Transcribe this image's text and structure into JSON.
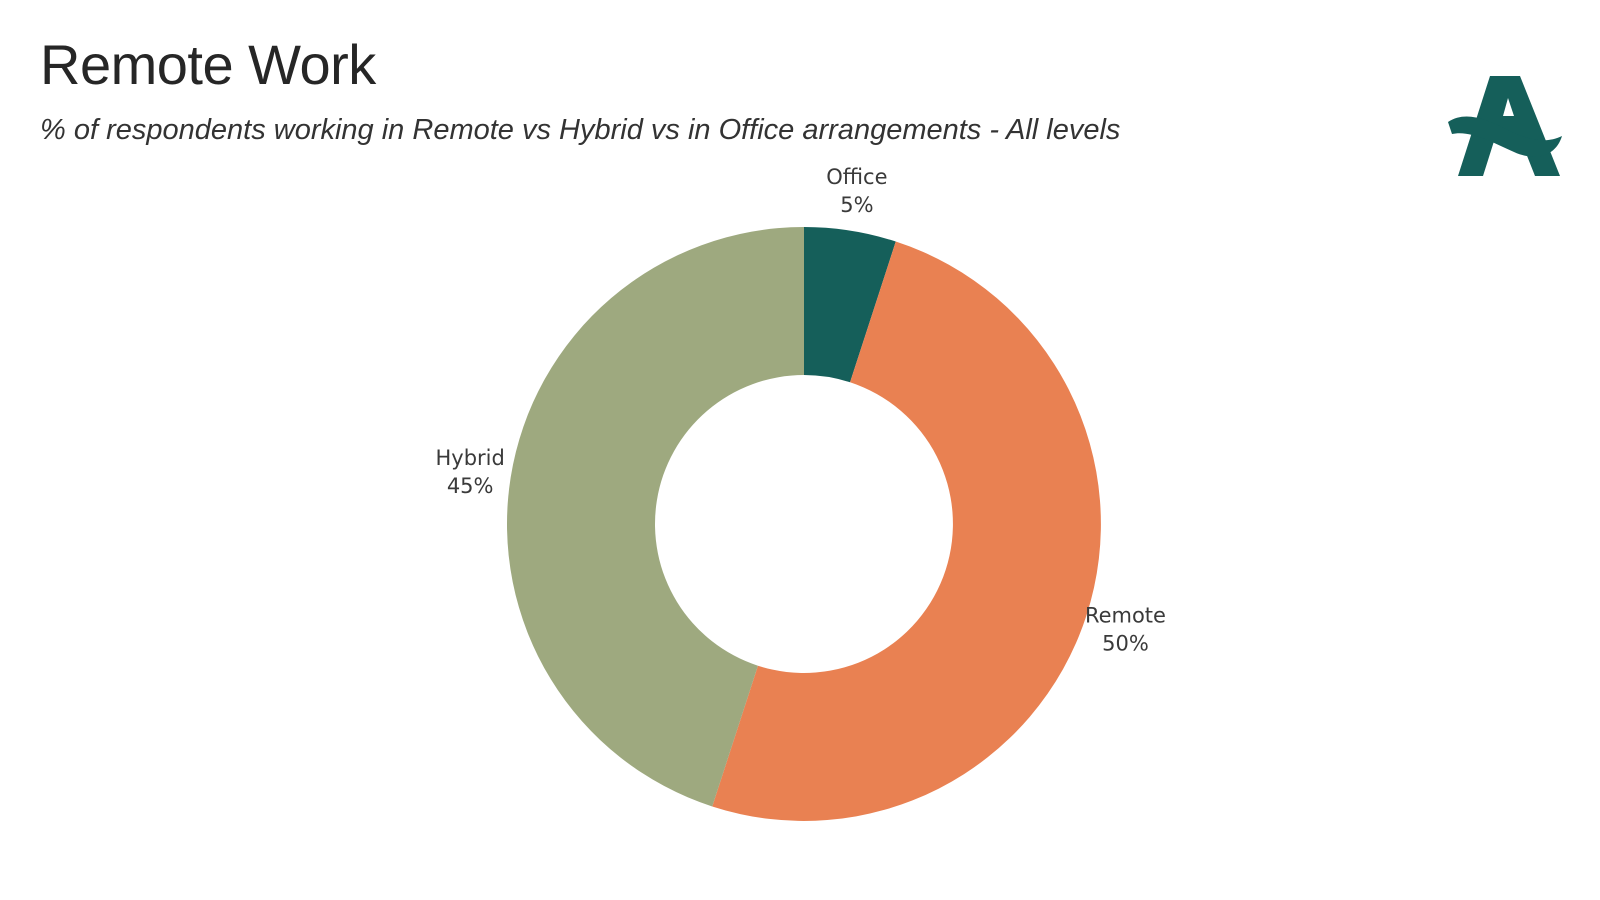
{
  "header": {
    "title": "Remote Work",
    "subtitle": "% of respondents working in Remote vs Hybrid vs in Office arrangements - All levels"
  },
  "logo": {
    "icon": "brand-a-logo-icon",
    "color": "#155f5a"
  },
  "chart_data": {
    "type": "pie",
    "variant": "donut",
    "title": "Remote Work",
    "subtitle": "% of respondents working in Remote vs Hybrid vs in Office arrangements - All levels",
    "slices": [
      {
        "label": "Office",
        "value": 5,
        "value_label": "5%",
        "color": "#155f5a"
      },
      {
        "label": "Remote",
        "value": 50,
        "value_label": "50%",
        "color": "#e98152"
      },
      {
        "label": "Hybrid",
        "value": 45,
        "value_label": "45%",
        "color": "#9ea97f"
      }
    ],
    "start_angle_deg": 0,
    "direction": "clockwise",
    "legend": "none",
    "data_labels": "outside"
  }
}
